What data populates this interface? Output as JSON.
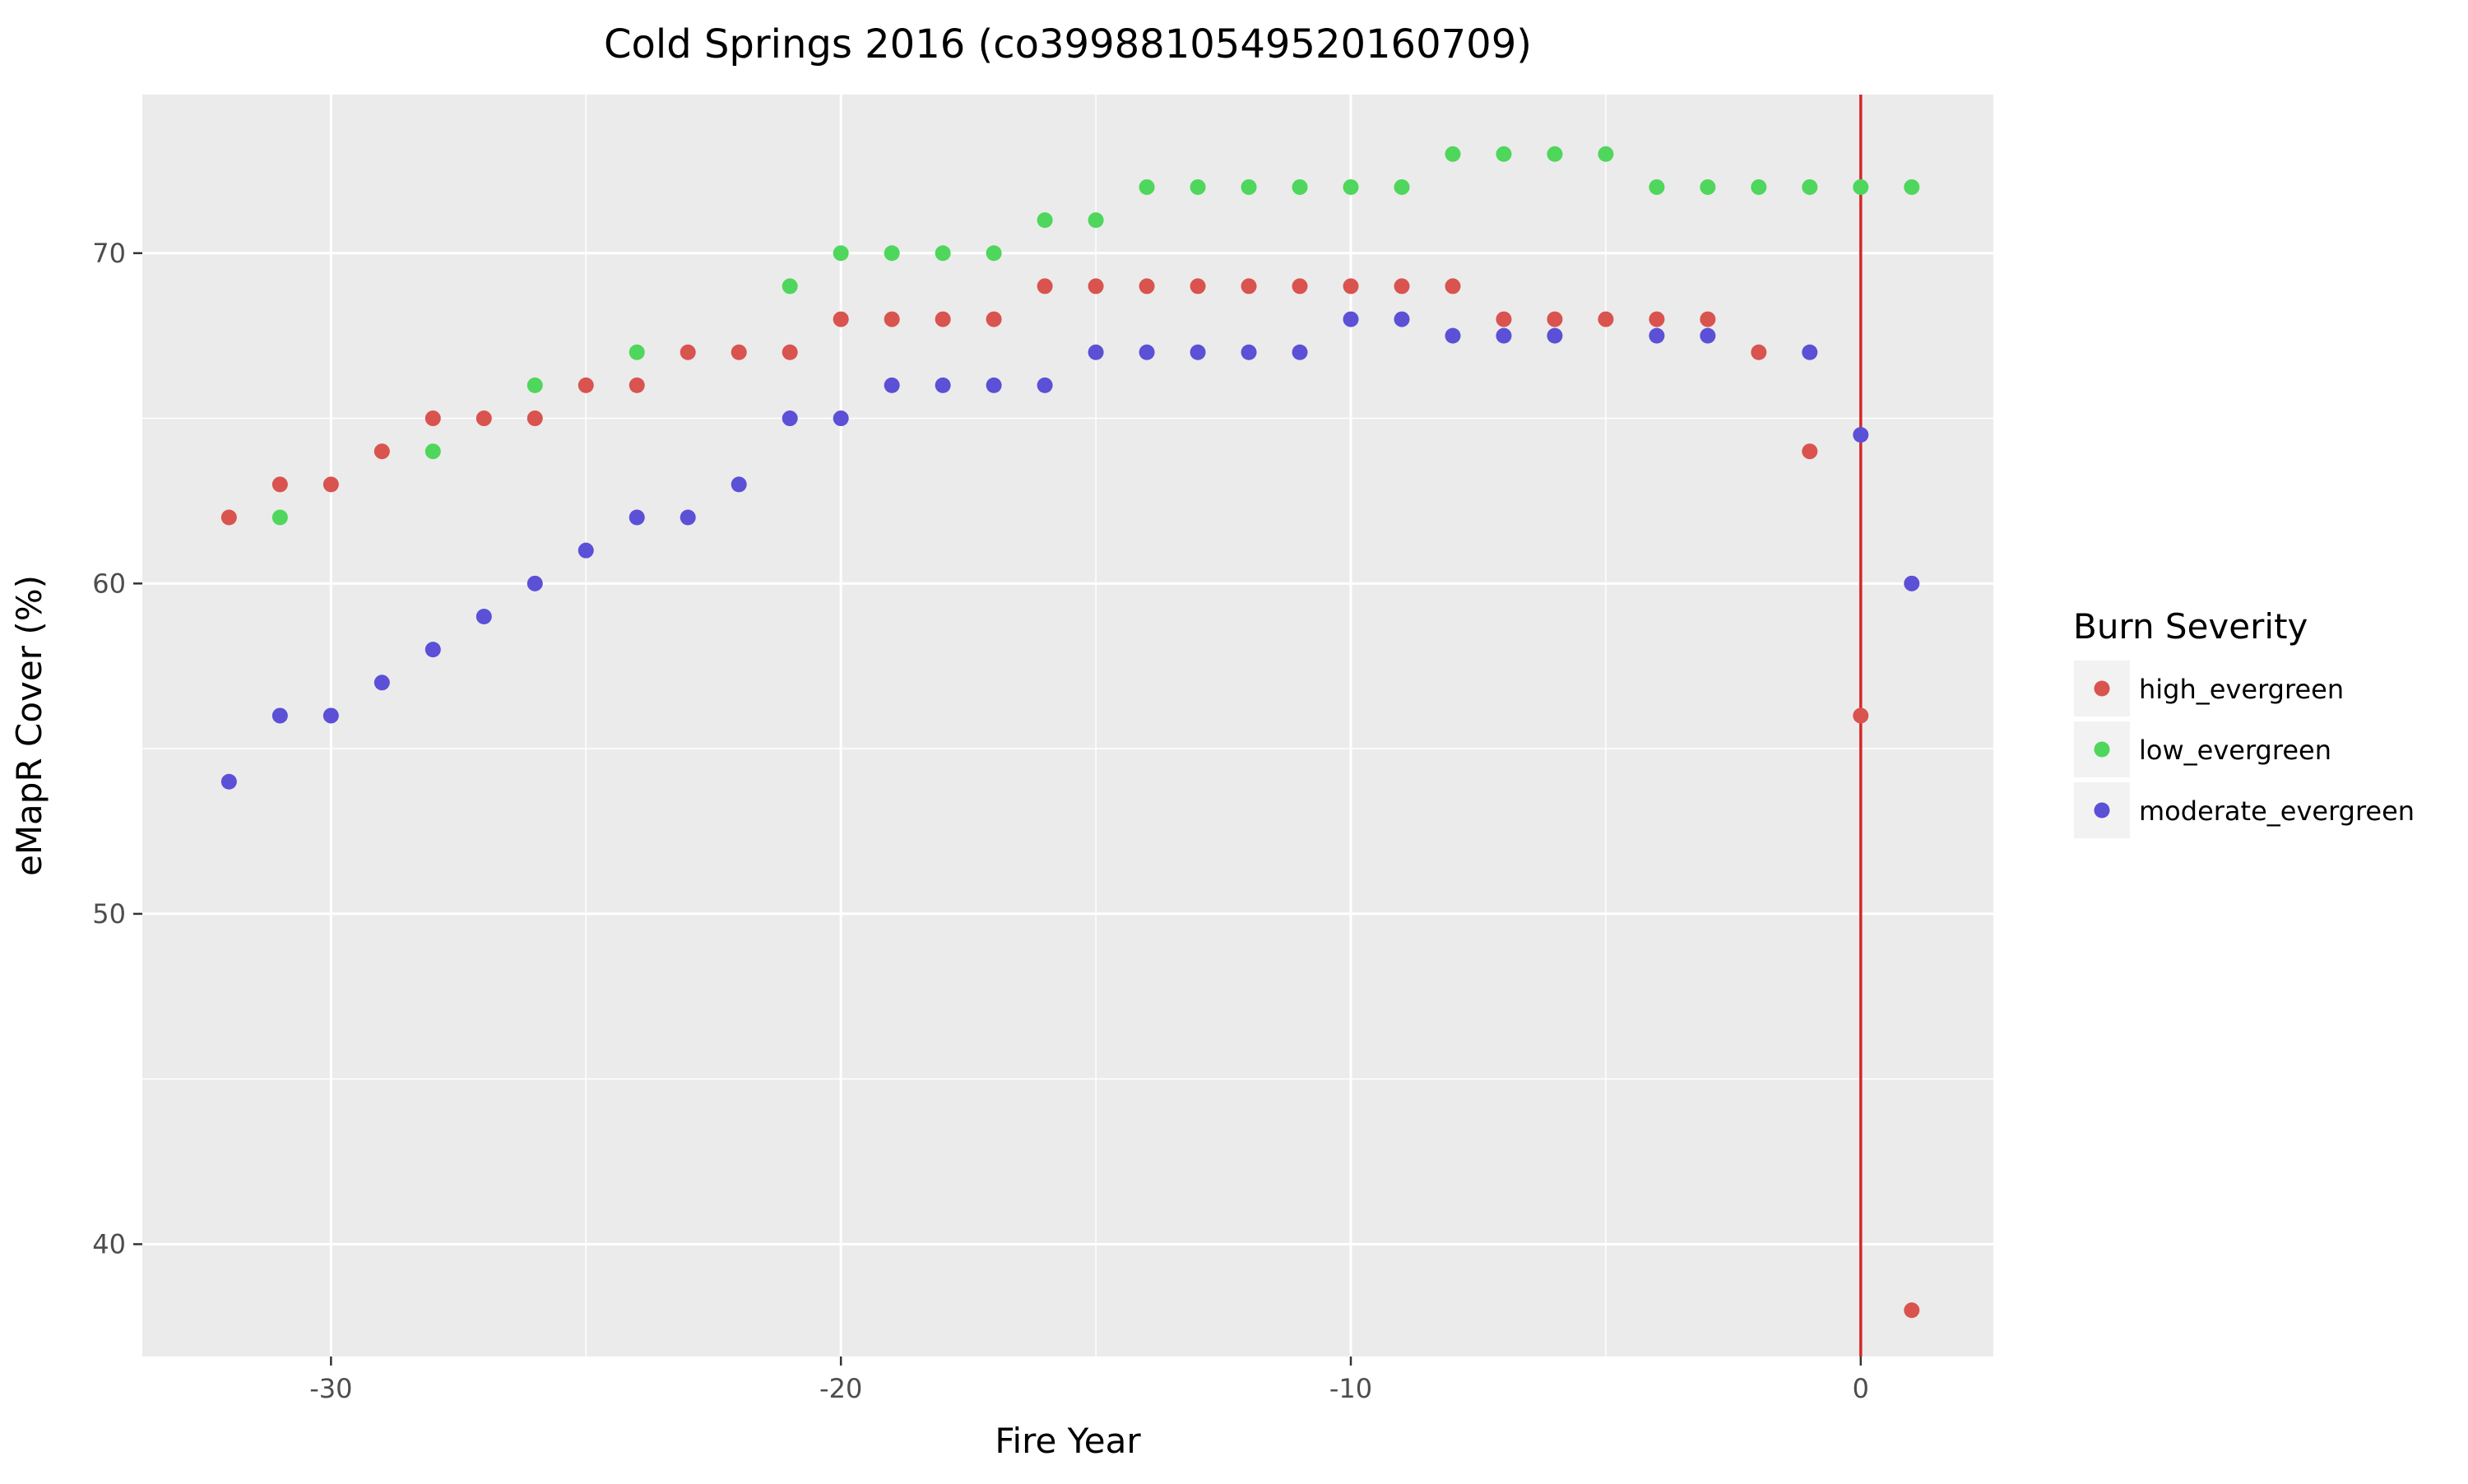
{
  "chart_data": {
    "type": "scatter",
    "title": "Cold Springs 2016 (co3998810549520160709)",
    "xlabel": "Fire Year",
    "ylabel": "eMapR Cover (%)",
    "xlim": [
      -33.7,
      2.6
    ],
    "ylim": [
      36.6,
      74.8
    ],
    "x_ticks": [
      -30,
      -20,
      -10,
      0
    ],
    "x_tick_labels": [
      "-30",
      "-20",
      "-10",
      "0"
    ],
    "y_ticks": [
      40,
      50,
      60,
      70
    ],
    "y_tick_labels": [
      "40",
      "50",
      "60",
      "70"
    ],
    "grid": true,
    "background": "#ebebeb",
    "vline": {
      "x": 0,
      "color": "#d62728"
    },
    "legend": {
      "title": "Burn Severity",
      "position": "right"
    },
    "series": [
      {
        "name": "high_evergreen",
        "color": "#d9534f",
        "x": [
          -32,
          -31,
          -30,
          -29,
          -28,
          -27,
          -26,
          -25,
          -24,
          -23,
          -22,
          -21,
          -20,
          -19,
          -18,
          -17,
          -16,
          -15,
          -14,
          -13,
          -12,
          -11,
          -10,
          -9,
          -8,
          -7,
          -6,
          -5,
          -4,
          -3,
          -2,
          -1,
          0,
          1
        ],
        "y": [
          62,
          63,
          63,
          64,
          65,
          65,
          65,
          66,
          66,
          67,
          67,
          67,
          68,
          68,
          68,
          68,
          69,
          69,
          69,
          69,
          69,
          69,
          69,
          69,
          69,
          68,
          68,
          68,
          68,
          68,
          67,
          64,
          56,
          38
        ]
      },
      {
        "name": "low_evergreen",
        "color": "#4fd65c",
        "x": [
          -31,
          -28,
          -26,
          -24,
          -21,
          -20,
          -19,
          -18,
          -17,
          -16,
          -15,
          -14,
          -13,
          -12,
          -11,
          -10,
          -9,
          -8,
          -7,
          -6,
          -5,
          -4,
          -3,
          -2,
          -1,
          0,
          1
        ],
        "y": [
          62,
          64,
          66,
          67,
          69,
          70,
          70,
          70,
          70,
          71,
          71,
          72,
          72,
          72,
          72,
          72,
          72,
          73,
          73,
          73,
          73,
          72,
          72,
          72,
          72,
          72,
          72
        ]
      },
      {
        "name": "moderate_evergreen",
        "color": "#5b50d6",
        "x": [
          -32,
          -31,
          -30,
          -29,
          -28,
          -27,
          -26,
          -25,
          -24,
          -23,
          -22,
          -21,
          -20,
          -19,
          -18,
          -17,
          -16,
          -15,
          -14,
          -13,
          -12,
          -11,
          -10,
          -9,
          -8,
          -7,
          -6,
          -4,
          -3,
          -1,
          0,
          1
        ],
        "y": [
          54,
          56,
          56,
          57,
          58,
          59,
          60,
          61,
          62,
          62,
          63,
          65,
          65,
          66,
          66,
          66,
          66,
          67,
          67,
          67,
          67,
          67,
          68,
          68,
          67.5,
          67.5,
          67.5,
          67.5,
          67.5,
          67,
          64.5,
          60
        ]
      }
    ]
  }
}
